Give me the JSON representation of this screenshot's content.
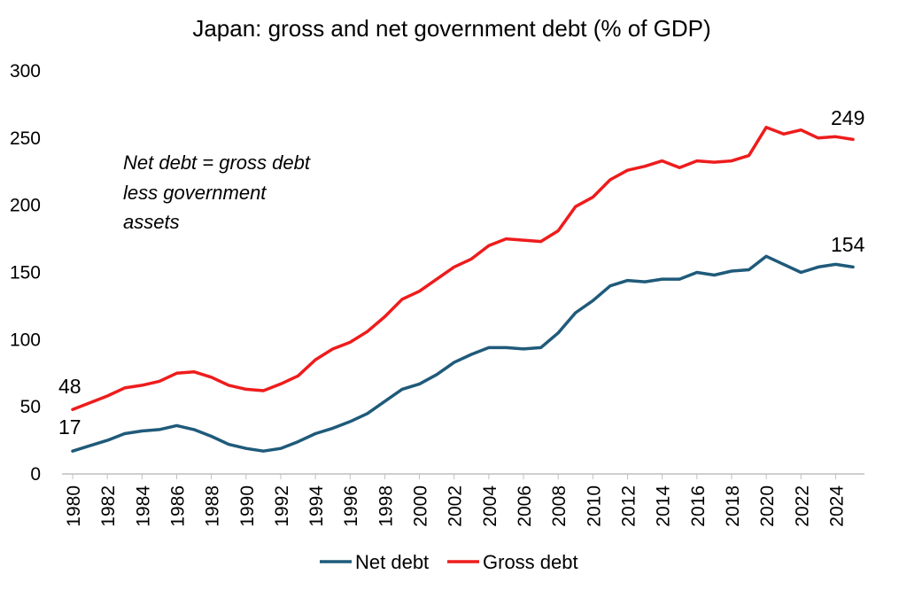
{
  "chart_data": {
    "type": "line",
    "title": "Japan: gross and net government debt (% of GDP)",
    "xlabel": "",
    "ylabel": "",
    "ylim": [
      0,
      300
    ],
    "yticks": [
      "0",
      "50",
      "100",
      "150",
      "200",
      "250",
      "300"
    ],
    "x": [
      1980,
      1981,
      1982,
      1983,
      1984,
      1985,
      1986,
      1987,
      1988,
      1989,
      1990,
      1991,
      1992,
      1993,
      1994,
      1995,
      1996,
      1997,
      1998,
      1999,
      2000,
      2001,
      2002,
      2003,
      2004,
      2005,
      2006,
      2007,
      2008,
      2009,
      2010,
      2011,
      2012,
      2013,
      2014,
      2015,
      2016,
      2017,
      2018,
      2019,
      2020,
      2021,
      2022,
      2023,
      2024,
      2025
    ],
    "xtick_labels": [
      "1980",
      "1982",
      "1984",
      "1986",
      "1988",
      "1990",
      "1992",
      "1994",
      "1996",
      "1998",
      "2000",
      "2002",
      "2004",
      "2006",
      "2008",
      "2010",
      "2012",
      "2014",
      "2016",
      "2018",
      "2020",
      "2022",
      "2024"
    ],
    "grid": false,
    "legend_position": "bottom",
    "series": [
      {
        "name": "Net debt",
        "color": "#1f5a7a",
        "values": [
          17,
          21,
          25,
          30,
          32,
          33,
          36,
          33,
          28,
          22,
          19,
          17,
          19,
          24,
          30,
          34,
          39,
          45,
          54,
          63,
          67,
          74,
          83,
          89,
          94,
          94,
          93,
          94,
          105,
          120,
          129,
          140,
          144,
          143,
          145,
          145,
          150,
          148,
          151,
          152,
          162,
          156,
          150,
          154,
          156,
          154
        ]
      },
      {
        "name": "Gross debt",
        "color": "#ee1c1c",
        "values": [
          48,
          53,
          58,
          64,
          66,
          69,
          75,
          76,
          72,
          66,
          63,
          62,
          67,
          73,
          85,
          93,
          98,
          106,
          117,
          130,
          136,
          145,
          154,
          160,
          170,
          175,
          174,
          173,
          181,
          199,
          206,
          219,
          226,
          229,
          233,
          228,
          233,
          232,
          233,
          237,
          258,
          253,
          256,
          250,
          251,
          249
        ]
      }
    ],
    "annotations": {
      "note_lines": [
        "Net debt = gross debt",
        "less government",
        "assets"
      ],
      "gross_start": "48",
      "net_start": "17",
      "gross_end": "249",
      "net_end": "154"
    }
  }
}
